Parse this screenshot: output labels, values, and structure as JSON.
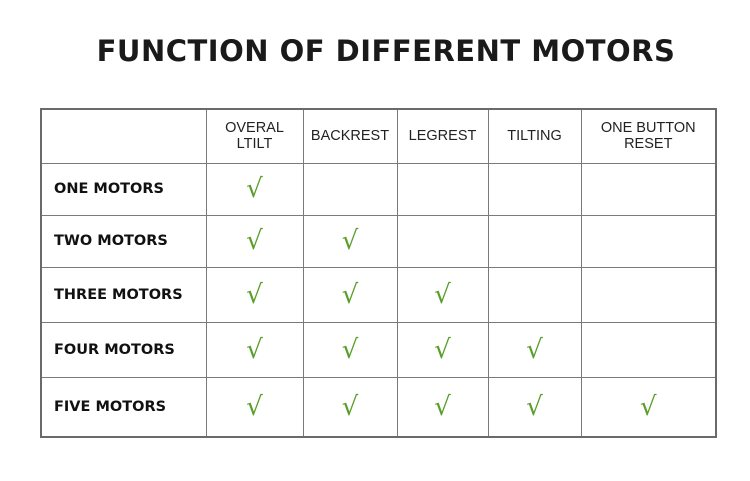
{
  "title": "FUNCTION OF DIFFERENT MOTORS",
  "colors": {
    "check": "#5a9e2a",
    "border": "#6a6a6a"
  },
  "check_symbol": "√",
  "columns": [
    "",
    "OVERAL LTILT",
    "BACKREST",
    "LEGREST",
    "TILTING",
    "ONE BUTTON RESET"
  ],
  "rows": [
    {
      "label": "ONE MOTORS",
      "cells": [
        true,
        false,
        false,
        false,
        false
      ]
    },
    {
      "label": "TWO MOTORS",
      "cells": [
        true,
        true,
        false,
        false,
        false
      ]
    },
    {
      "label": "THREE MOTORS",
      "cells": [
        true,
        true,
        true,
        false,
        false
      ]
    },
    {
      "label": "FOUR MOTORS",
      "cells": [
        true,
        true,
        true,
        true,
        false
      ]
    },
    {
      "label": "FIVE MOTORS",
      "cells": [
        true,
        true,
        true,
        true,
        true
      ]
    }
  ]
}
